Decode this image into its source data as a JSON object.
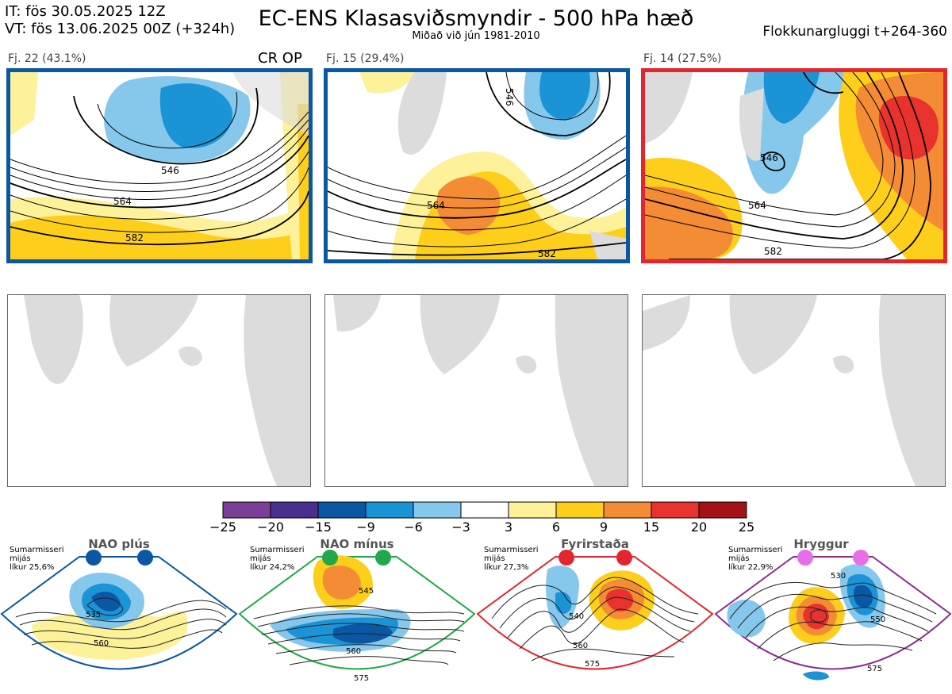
{
  "header": {
    "it_line": "IT: fös 30.05.2025 12Z",
    "vt_line": "VT: fös 13.06.2025 00Z  (+324h)",
    "title": "EC-ENS Klasasviðsmyndir - 500 hPa hæð",
    "subtitle": "Miðað við jún 1981-2010",
    "window": "Flokkunargluggi t+264-360"
  },
  "clusters": [
    {
      "label": "Fj. 22 (43.1%)",
      "tag": "CR OP",
      "frame_color": "#0b57a4",
      "contours": [
        "546",
        "564",
        "582"
      ]
    },
    {
      "label": "Fj. 15 (29.4%)",
      "tag": "",
      "frame_color": "#0b57a4",
      "contours": [
        "546",
        "564",
        "582"
      ]
    },
    {
      "label": "Fj. 14 (27.5%)",
      "tag": "",
      "frame_color": "#e3262e",
      "contours": [
        "546",
        "564",
        "582"
      ]
    }
  ],
  "colorbar": {
    "ticks": [
      "−25",
      "−20",
      "−15",
      "−9",
      "−6",
      "−3",
      "3",
      "6",
      "9",
      "15",
      "20",
      "25"
    ],
    "colors": [
      "#7b3f98",
      "#4b2f8f",
      "#0b57a4",
      "#1b94d6",
      "#86c7ec",
      "#ffffff",
      "#fdf29a",
      "#fdce1a",
      "#f48b35",
      "#e8322d",
      "#a31218"
    ]
  },
  "regimes": [
    {
      "title": "NAO plús",
      "info": [
        "Sumarmisseri",
        "mijás",
        "líkur 25,6%"
      ],
      "color": "#0b57a4",
      "dot_color": "#0b57a4",
      "contours": [
        "535",
        "560"
      ]
    },
    {
      "title": "NAO mínus",
      "info": [
        "Sumarmisseri",
        "mijás",
        "líkur 24,2%"
      ],
      "color": "#22a84a",
      "dot_color": "#22a84a",
      "contours": [
        "545",
        "560",
        "575"
      ]
    },
    {
      "title": "Fyrirstaða",
      "info": [
        "Sumarmisseri",
        "mijás",
        "líkur 27,3%"
      ],
      "color": "#e3262e",
      "dot_color": "#e3262e",
      "contours": [
        "540",
        "560",
        "575"
      ]
    },
    {
      "title": "Hryggur",
      "info": [
        "Sumarmisseri",
        "mijás",
        "líkur 22,9%"
      ],
      "color": "#8b2f8f",
      "dot_color": "#e86ee8",
      "contours": [
        "530",
        "550",
        "575"
      ]
    }
  ]
}
